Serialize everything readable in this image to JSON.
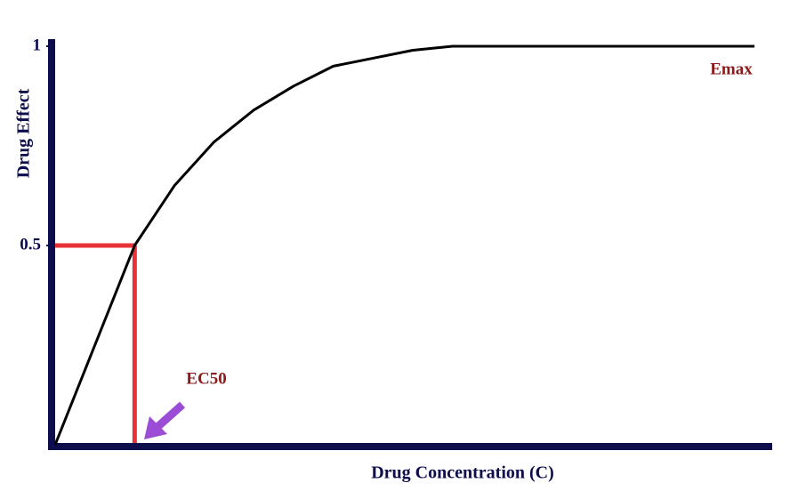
{
  "chart_data": {
    "type": "line",
    "x_label": "Drug Concentration (C)",
    "y_label": "Drug Effect",
    "annotations": [
      "Emax",
      "EC50"
    ],
    "x": [
      0,
      1,
      1.5,
      2,
      2.5,
      3,
      3.5,
      4,
      4.5,
      5,
      6,
      7,
      8,
      8.8
    ],
    "series": [
      {
        "color": "#000000",
        "values": [
          0,
          0.5,
          0.65,
          0.76,
          0.84,
          0.9,
          0.95,
          0.97,
          0.99,
          1,
          1,
          1,
          1,
          1
        ]
      }
    ],
    "xlim": [
      0,
      9
    ],
    "ylim": [
      0,
      1
    ],
    "yticks": [
      0.5,
      1
    ],
    "reference": {
      "x": 1,
      "y": 0.5,
      "color": "#e8323a"
    },
    "axis_color": "#0d0d4d",
    "annotation_color": "#8b1a1a"
  }
}
